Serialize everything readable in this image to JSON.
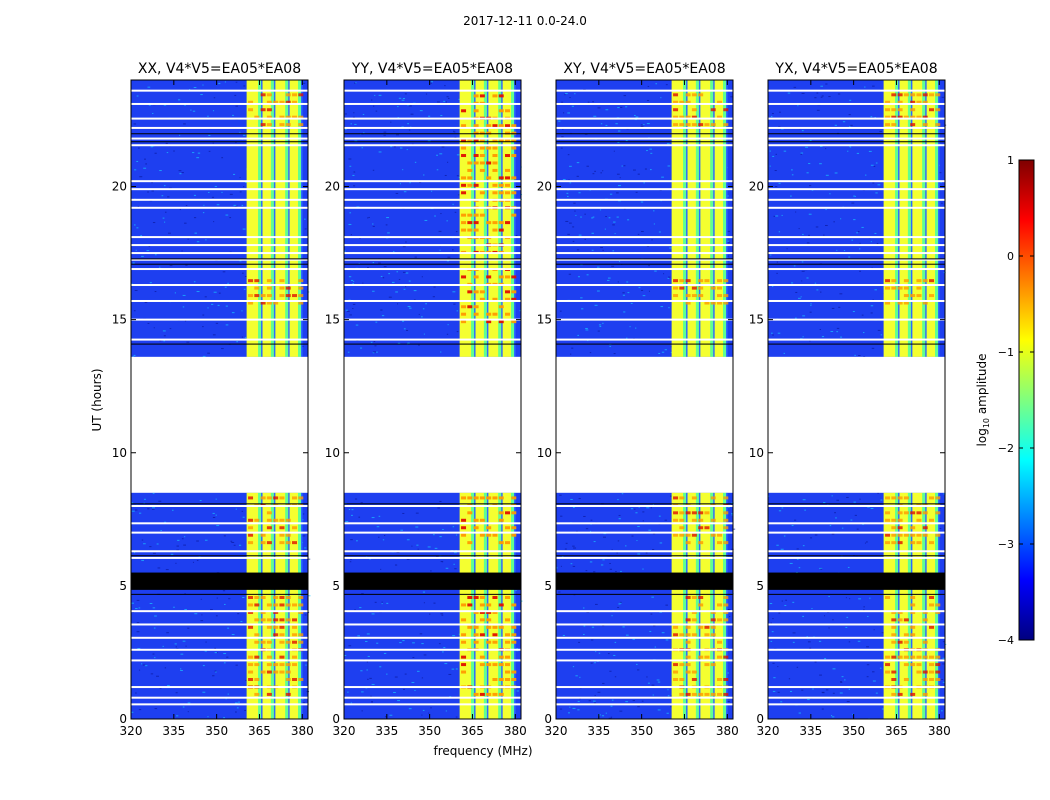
{
  "figure": {
    "suptitle": "2017-12-11 0.0-24.0"
  },
  "chart_data": {
    "type": "heatmap",
    "title": "2017-12-11 0.0-24.0",
    "xlabel": "frequency (MHz)",
    "ylabel": "UT (hours)",
    "xlim": [
      320,
      382
    ],
    "ylim": [
      0,
      24
    ],
    "xticks": [
      320,
      335,
      350,
      365,
      380
    ],
    "yticks": [
      0,
      5,
      10,
      15,
      20
    ],
    "panels": [
      {
        "title": "XX, V4*V5=EA05*EA08"
      },
      {
        "title": "YY, V4*V5=EA05*EA08"
      },
      {
        "title": "XY, V4*V5=EA05*EA08"
      },
      {
        "title": "YX, V4*V5=EA05*EA08"
      }
    ],
    "colorbar": {
      "label_main": "log",
      "label_sub": "10",
      "label_tail": " amplitude",
      "range": [
        -4,
        1
      ],
      "ticks": [
        "1",
        "0",
        "−1",
        "−2",
        "−3",
        "−4"
      ],
      "tick_values": [
        1,
        0,
        -1,
        -2,
        -3,
        -4
      ],
      "colormap": "jet"
    },
    "no_data_ranges_hours": [
      [
        8.5,
        13.6
      ]
    ],
    "flagged_black_ranges_hours": [
      [
        4.85,
        5.5
      ]
    ],
    "active_band_mhz": [
      360,
      380
    ]
  },
  "colors": {
    "jet_low": "#0a1aa0",
    "jet_bg": "#1e3ff0",
    "jet_cyan": "#18c8ff",
    "jet_green": "#60ff90",
    "jet_yellow": "#f4ff30",
    "jet_orange": "#ff9a00",
    "jet_red": "#e01000"
  }
}
